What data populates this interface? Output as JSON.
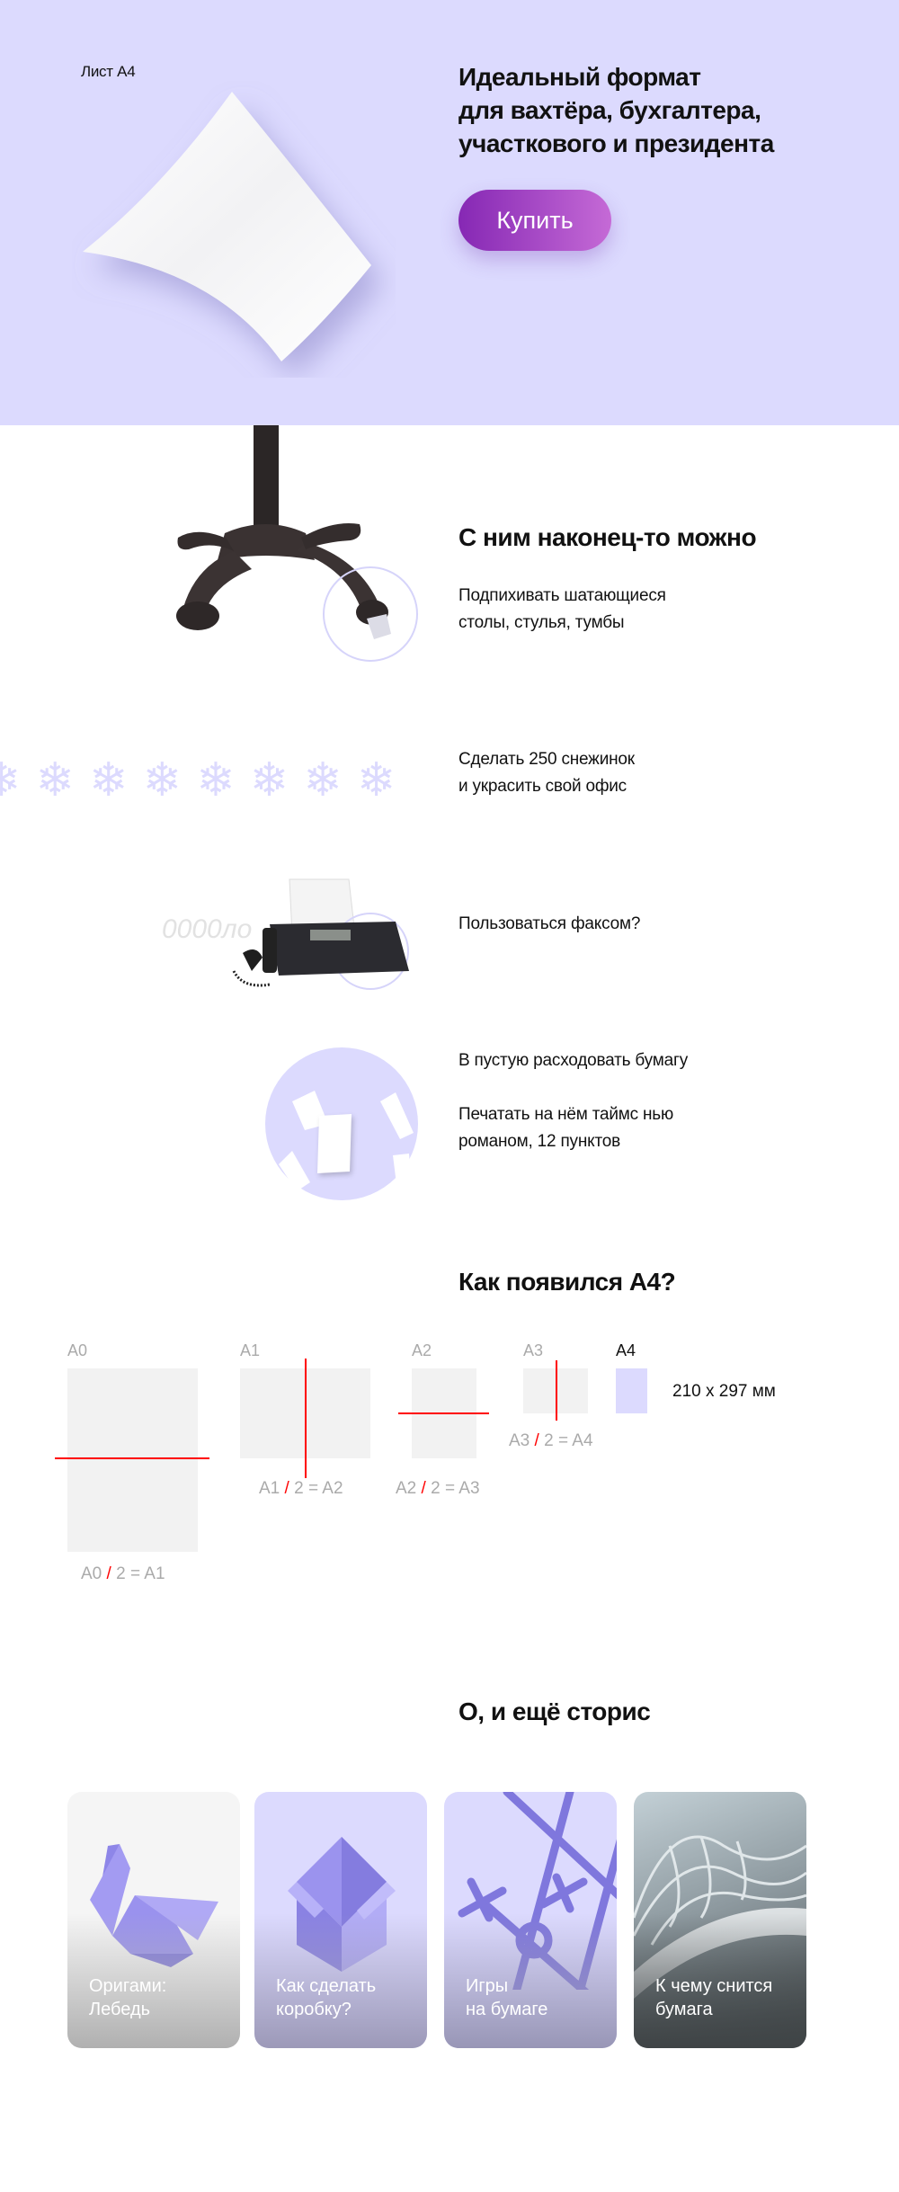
{
  "hero": {
    "label": "Лист А4",
    "title_lines": [
      "Идеальный формат",
      "для вахтёра, бухгалтера,",
      "участкового и президента"
    ],
    "buy_button": "Купить",
    "bg_color": "#dcdafe",
    "button_gradient": [
      "#8628b4",
      "#c56ad6"
    ]
  },
  "uses": {
    "title": "С ним наконец-то можно",
    "items": [
      {
        "lines": [
          "Подпихивать шатающиеся",
          "столы, стулья, тумбы"
        ],
        "icon": "table-leg-image"
      },
      {
        "lines": [
          "Сделать 250 снежинок",
          "и украсить свой офис"
        ],
        "icon": "snowflake-icon"
      },
      {
        "lines": [
          "Пользоваться факсом?"
        ],
        "icon": "fax-image"
      },
      {
        "lines": [
          "В пустую расходовать бумагу"
        ],
        "icon": "flying-papers-image"
      },
      {
        "lines": [
          "Печатать на нём таймс нью",
          "романом, 12 пунктов"
        ]
      }
    ],
    "fax_sound": "0000ло"
  },
  "origin": {
    "title": "Как появился А4?",
    "sizes": [
      "A0",
      "A1",
      "A2",
      "A3",
      "A4"
    ],
    "formulas": [
      {
        "a": "A0",
        "b": "2 = A1"
      },
      {
        "a": "A1",
        "b": "2 = A2"
      },
      {
        "a": "A2",
        "b": "2 = A3"
      },
      {
        "a": "A3",
        "b": "2 = A4"
      }
    ],
    "slash": "/",
    "a4_dimensions": "210 x 297 мм",
    "cut_color": "#ff0000"
  },
  "stories": {
    "title": "О, и ещё сторис",
    "cards": [
      {
        "lines": [
          "Оригами:",
          "Лебедь"
        ],
        "icon": "origami-swan-icon"
      },
      {
        "lines": [
          "Как сделать",
          "коробку?"
        ],
        "icon": "box-icon"
      },
      {
        "lines": [
          "Игры",
          "на бумаге"
        ],
        "icon": "tic-tac-toe-icon"
      },
      {
        "lines": [
          "К чему снится",
          "бумага"
        ],
        "icon": "paper-waves-image"
      }
    ]
  }
}
